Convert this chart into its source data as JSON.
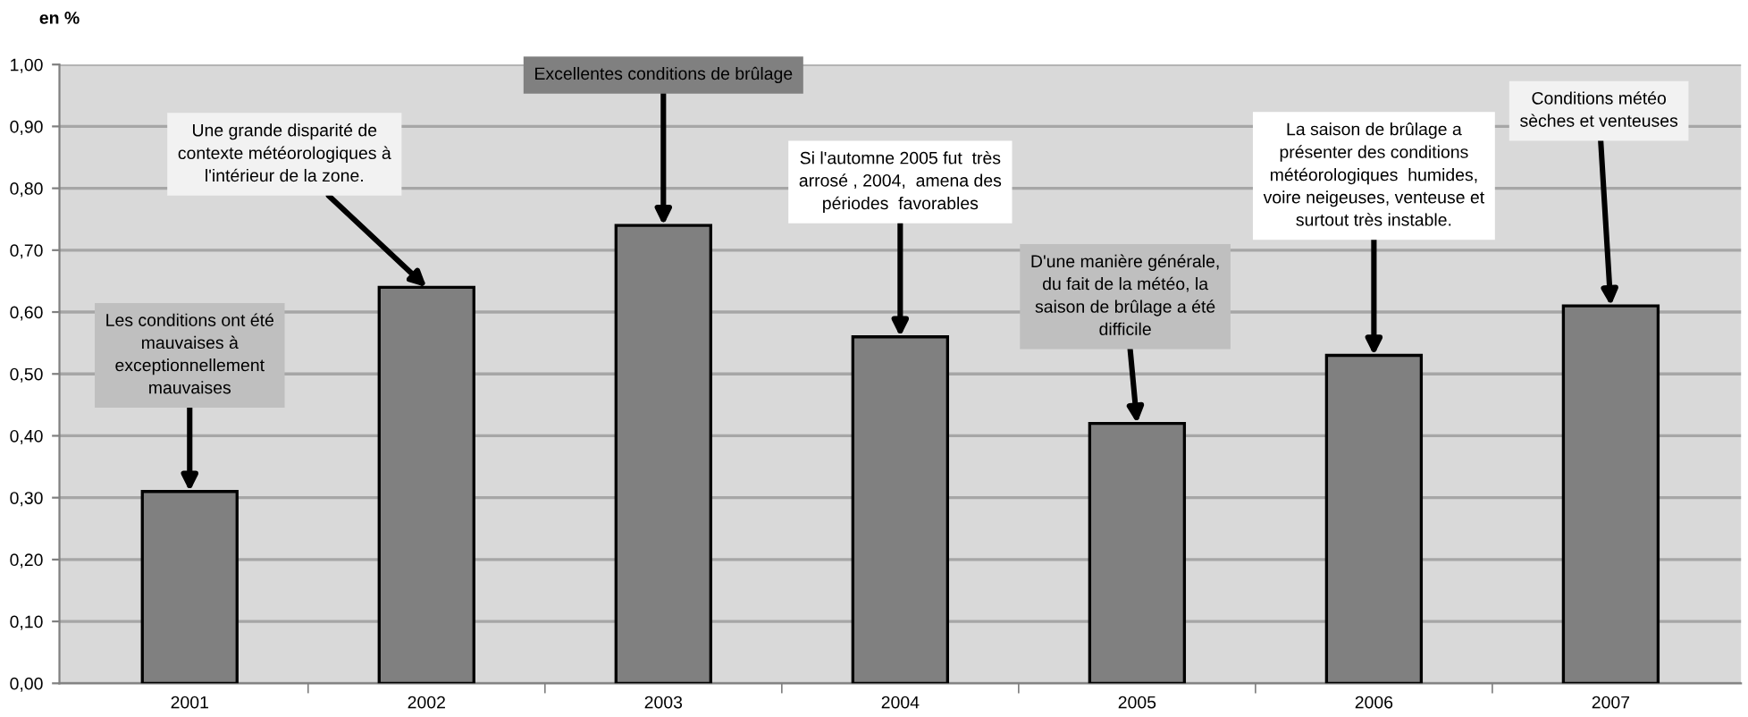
{
  "chart_data": {
    "type": "bar",
    "ylabel": "en %",
    "categories": [
      "2001",
      "2002",
      "2003",
      "2004",
      "2005",
      "2006",
      "2007"
    ],
    "values": [
      0.31,
      0.64,
      0.74,
      0.56,
      0.42,
      0.53,
      0.61
    ],
    "color": "#808080",
    "ylim": [
      0,
      1
    ],
    "yticks": [
      {
        "value": 0,
        "label": "0,00"
      },
      {
        "value": 0.1,
        "label": "0,10"
      },
      {
        "value": 0.2,
        "label": "0,20"
      },
      {
        "value": 0.3,
        "label": "0,30"
      },
      {
        "value": 0.4,
        "label": "0,40"
      },
      {
        "value": 0.5,
        "label": "0,50"
      },
      {
        "value": 0.6,
        "label": "0,60"
      },
      {
        "value": 0.7,
        "label": "0,70"
      },
      {
        "value": 0.8,
        "label": "0,80"
      },
      {
        "value": 0.9,
        "label": "0,90"
      },
      {
        "value": 1,
        "label": "1,00"
      }
    ],
    "grid": "y",
    "annotations": [
      {
        "text": "Les conditions ont été\nmauvaises à\nexceptionnellement\nmauvaises",
        "x": "2001",
        "y": 0.31
      },
      {
        "text": "Une grande disparité de\ncontexte météorologiques à\nl'intérieur de la zone.",
        "x": "2002",
        "y": 0.64
      },
      {
        "text": "Excellentes conditions de brûlage",
        "x": "2003",
        "y": 0.74
      },
      {
        "text": "Si l'automne 2005 fut  très\narrosé , 2004,  amena des\npériodes  favorables",
        "x": "2004",
        "y": 0.56
      },
      {
        "text": "D'une manière générale,\ndu fait de la météo, la\nsaison de brûlage a été\ndifficile",
        "x": "2005",
        "y": 0.42
      },
      {
        "text": "La saison de brûlage a\nprésenter des conditions\nmétéorologiques  humides,\nvoire neigeuses, venteuse et\nsurtout très instable.",
        "x": "2006",
        "y": 0.53
      },
      {
        "text": "Conditions météo\nsèches et venteuses",
        "x": "2007",
        "y": 0.61
      }
    ]
  }
}
